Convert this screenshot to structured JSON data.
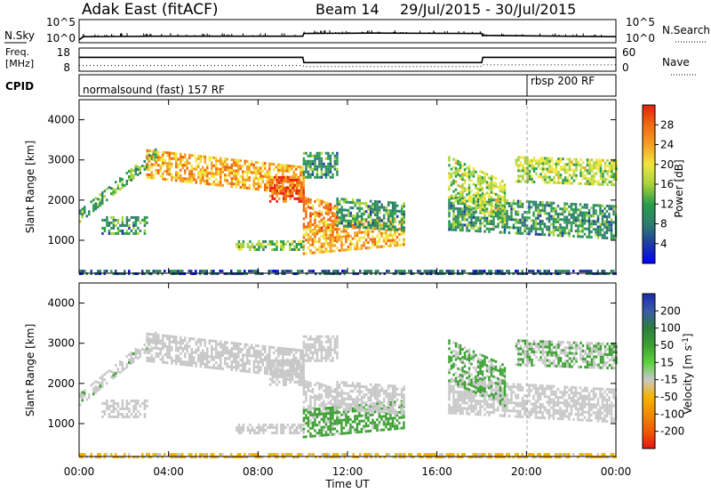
{
  "header": {
    "station": "Adak East (fitACF)",
    "beam": "Beam 14",
    "dates": "29/Jul/2015 - 30/Jul/2015"
  },
  "noise_panel": {
    "left_label": "N.Sky",
    "right_label": "N.Search",
    "left_ticks": [
      "10^5",
      "10^0"
    ],
    "right_ticks": [
      "10^5",
      "10^0"
    ]
  },
  "freq_panel": {
    "left_label_1": "Freq.",
    "left_label_2": "[MHz]",
    "left_ticks": [
      "18",
      "8"
    ],
    "right_label": "Nave",
    "right_ticks": [
      "60",
      "0"
    ]
  },
  "cpid_panel": {
    "label": "CPID",
    "programs": [
      {
        "name": "normalsound (fast) 157 RF",
        "start_hour": 0
      },
      {
        "name": "rbsp 200 RF",
        "start_hour": 20
      }
    ]
  },
  "axes": {
    "xlabel": "Time UT",
    "x_ticks": [
      "00:00",
      "04:00",
      "08:00",
      "12:00",
      "16:00",
      "20:00",
      "00:00"
    ],
    "ylabel": "Slant Range [km]",
    "y_ticks": [
      "1000",
      "2000",
      "3000",
      "4000"
    ]
  },
  "colorbars": {
    "power": {
      "label": "Power [dB]",
      "ticks": [
        "4",
        "8",
        "12",
        "16",
        "20",
        "24",
        "28"
      ],
      "colors": [
        "#0000ff",
        "#1e3ca0",
        "#2e7d6e",
        "#2a9d4a",
        "#a8d23c",
        "#f0e63c",
        "#f5a020",
        "#f06a10",
        "#e62010"
      ]
    },
    "velocity": {
      "label": "Velocity [m s",
      "label_sup": "-1",
      "label_end": "]",
      "ticks": [
        "200",
        "100",
        "50",
        "15",
        "-15",
        "-50",
        "-100",
        "-200"
      ],
      "colors": [
        "#1c2cae",
        "#3c5aa8",
        "#2e7d3e",
        "#3ca032",
        "#5ad23c",
        "#c8c8c8",
        "#f5b400",
        "#f08c00",
        "#f05a00",
        "#e61414"
      ]
    }
  },
  "chart_data": {
    "type": "heatmap",
    "x_range_hours": [
      0,
      24
    ],
    "y_range_km": [
      180,
      4500
    ],
    "noise_sky_log10": [
      [
        0,
        0.3
      ],
      [
        0.2,
        1.1
      ],
      [
        3.4,
        1.2
      ],
      [
        10,
        1.2
      ],
      [
        10.05,
        1.9
      ],
      [
        13,
        2.0
      ],
      [
        18,
        1.9
      ],
      [
        18.05,
        1.4
      ],
      [
        24,
        1.1
      ]
    ],
    "frequency_mhz": [
      [
        0,
        14.2
      ],
      [
        10,
        14.2
      ],
      [
        10.05,
        11.5
      ],
      [
        18,
        11.5
      ],
      [
        18.05,
        14.2
      ],
      [
        24,
        14.2
      ]
    ],
    "nave": [
      [
        0,
        12
      ],
      [
        10,
        12
      ],
      [
        10.05,
        9
      ],
      [
        18,
        9
      ],
      [
        18.05,
        14
      ],
      [
        24,
        14
      ]
    ],
    "echo_regions": [
      {
        "name": "A",
        "t0": 0.0,
        "t1": 3.5,
        "r0": 1500,
        "r1": 1800,
        "slope": 450,
        "power": 12,
        "velocity": 0
      },
      {
        "name": "B",
        "t0": 1.0,
        "t1": 3.0,
        "r0": 1200,
        "r1": 1650,
        "slope": 0,
        "power": 10,
        "velocity": -10
      },
      {
        "name": "C",
        "t0": 3.0,
        "t1": 10.0,
        "r0": 2600,
        "r1": 3300,
        "slope": -60,
        "power": 22,
        "velocity": -10
      },
      {
        "name": "D",
        "t0": 8.5,
        "t1": 10.0,
        "r0": 2000,
        "r1": 2600,
        "slope": 0,
        "power": 27,
        "velocity": -20
      },
      {
        "name": "E",
        "t0": 7.0,
        "t1": 10.0,
        "r0": 800,
        "r1": 1050,
        "slope": 0,
        "power": 13,
        "velocity": -10
      },
      {
        "name": "F",
        "t0": 10.0,
        "t1": 11.5,
        "r0": 1300,
        "r1": 2200,
        "slope": -200,
        "power": 24,
        "velocity": -10
      },
      {
        "name": "G",
        "t0": 10.0,
        "t1": 14.5,
        "r0": 700,
        "r1": 1400,
        "slope": 50,
        "power": 22,
        "velocity": 30
      },
      {
        "name": "H",
        "t0": 11.5,
        "t1": 14.5,
        "r0": 1400,
        "r1": 2100,
        "slope": -40,
        "power": 10,
        "velocity": -10
      },
      {
        "name": "I",
        "t0": 10.0,
        "t1": 11.5,
        "r0": 2600,
        "r1": 3200,
        "slope": 0,
        "power": 10,
        "velocity": -10
      },
      {
        "name": "J",
        "t0": 16.5,
        "t1": 24.0,
        "r0": 1300,
        "r1": 2100,
        "slope": -30,
        "power": 10,
        "velocity": -10
      },
      {
        "name": "K",
        "t0": 16.5,
        "t1": 19.0,
        "r0": 2100,
        "r1": 3100,
        "slope": -250,
        "power": 16,
        "velocity": 20
      },
      {
        "name": "L",
        "t0": 19.5,
        "t1": 24.0,
        "r0": 2500,
        "r1": 3100,
        "slope": -20,
        "power": 16,
        "velocity": 15
      },
      {
        "name": "M",
        "t0": 0.0,
        "t1": 24.0,
        "r0": 200,
        "r1": 280,
        "slope": 0,
        "power": 6,
        "velocity": -60
      }
    ]
  }
}
